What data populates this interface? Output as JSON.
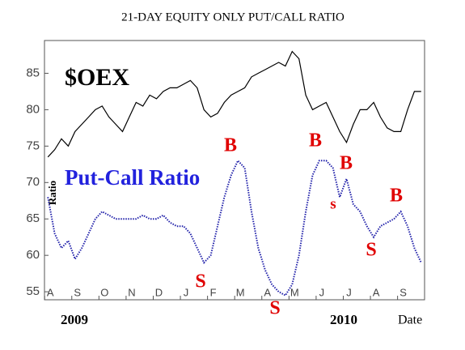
{
  "chart_data": {
    "type": "line",
    "title": "21-DAY EQUITY ONLY PUT/CALL RATIO",
    "y_label": "Ratio",
    "x_label": "Date",
    "year_labels": [
      "2009",
      "2010"
    ],
    "categories": [
      "A",
      null,
      null,
      null,
      "S",
      null,
      null,
      null,
      "O",
      null,
      null,
      null,
      "N",
      null,
      null,
      null,
      "D",
      null,
      null,
      null,
      "J",
      null,
      null,
      null,
      "F",
      null,
      null,
      null,
      "M",
      null,
      null,
      null,
      "A",
      null,
      null,
      null,
      "M",
      null,
      null,
      null,
      "J",
      null,
      null,
      null,
      "J",
      null,
      null,
      null,
      "A",
      null,
      null,
      null,
      "S",
      null,
      null,
      null
    ],
    "series": [
      {
        "name": "$OEX",
        "color": "#000000",
        "values": [
          73.5,
          74.5,
          76,
          75,
          77,
          78,
          79,
          80,
          80.5,
          79,
          78,
          77,
          79,
          81,
          80.5,
          82,
          81.5,
          82.5,
          83,
          83,
          83.5,
          84,
          83,
          80,
          79,
          79.5,
          81,
          82,
          82.5,
          83,
          84.5,
          85,
          85.5,
          86,
          86.5,
          86,
          88,
          87,
          82,
          80,
          80.5,
          81,
          79,
          77,
          75.5,
          78,
          80,
          80,
          81,
          79,
          77.5,
          77,
          77,
          80,
          82.5,
          82.5
        ]
      },
      {
        "name": "Put-Call Ratio",
        "color": "#2222aa",
        "values": [
          68,
          63,
          61,
          62,
          59.5,
          61,
          63,
          65,
          66,
          65.5,
          65,
          65,
          65,
          65,
          65.5,
          65,
          65,
          65.5,
          64.5,
          64,
          64,
          63,
          61,
          59,
          60,
          64,
          68,
          71,
          73,
          72,
          66,
          61,
          58,
          56,
          55,
          54.5,
          56,
          60,
          66,
          71,
          73,
          73,
          72,
          68,
          70.5,
          67,
          66,
          64,
          62.5,
          64,
          64.5,
          65,
          66,
          64,
          61,
          59
        ]
      }
    ],
    "annotations": [
      "B",
      "S",
      "S",
      "B",
      "B",
      "s",
      "S",
      "B"
    ],
    "ylim": [
      53.9,
      89.5
    ],
    "yticks": [
      55,
      60,
      65,
      70,
      75,
      80,
      85
    ]
  }
}
